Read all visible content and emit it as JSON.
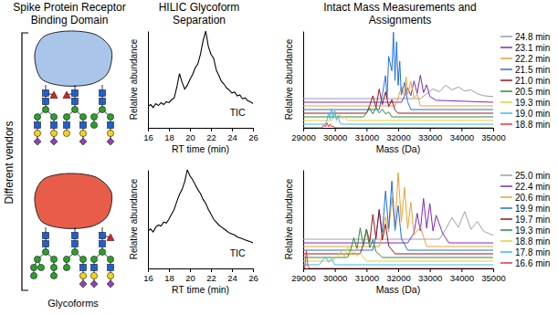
{
  "figure": {
    "column_titles": [
      "Spike Protein Receptor Binding Domain",
      "HILIC Glycoform Separation",
      "Intact Mass Measurements and Assignments"
    ],
    "side_label": "Different vendors",
    "glycan_label": "Glycoforms"
  },
  "chart_data": [
    {
      "type": "line",
      "x_label": "RT time (min)",
      "y_label": "Relative abundance",
      "annotation": "TIC",
      "color": "#000000",
      "x": [
        16,
        16.25,
        16.5,
        16.75,
        17,
        17.25,
        17.5,
        17.75,
        18,
        18.25,
        18.5,
        18.75,
        19,
        19.25,
        19.5,
        19.75,
        20,
        20.25,
        20.5,
        20.75,
        21,
        21.25,
        21.5,
        21.75,
        22,
        22.25,
        22.5,
        22.75,
        23,
        23.25,
        23.5,
        23.75,
        24,
        24.25,
        24.5,
        24.75,
        25,
        25.25,
        25.5,
        25.75,
        26
      ],
      "values": [
        22,
        24,
        21,
        25,
        23,
        26,
        24,
        27,
        26,
        29,
        31,
        42,
        56,
        47,
        40,
        44,
        50,
        55,
        62,
        66,
        76,
        90,
        100,
        84,
        76,
        72,
        60,
        54,
        48,
        45,
        41,
        39,
        36,
        37,
        33,
        34,
        30,
        31,
        28,
        27,
        25
      ],
      "xlim": [
        16,
        26
      ],
      "xticks": [
        16,
        18,
        20,
        22,
        24,
        26
      ],
      "ylim": [
        0,
        100
      ],
      "tick_labels": "x"
    },
    {
      "type": "line",
      "x_label": "RT time (min)",
      "y_label": "Relative abundance",
      "annotation": "TIC",
      "color": "#000000",
      "x": [
        16,
        16.25,
        16.5,
        16.75,
        17,
        17.25,
        17.5,
        17.75,
        18,
        18.25,
        18.5,
        18.75,
        19,
        19.25,
        19.5,
        19.75,
        20,
        20.25,
        20.5,
        20.75,
        21,
        21.25,
        21.5,
        21.75,
        22,
        22.25,
        22.5,
        22.75,
        23,
        23.25,
        23.5,
        23.75,
        24,
        24.25,
        24.5,
        24.75,
        25,
        25.25,
        25.5,
        25.75,
        26
      ],
      "values": [
        38,
        40,
        37,
        42,
        44,
        43,
        47,
        46,
        50,
        55,
        60,
        68,
        75,
        80,
        88,
        100,
        94,
        90,
        85,
        80,
        76,
        70,
        66,
        60,
        55,
        50,
        47,
        44,
        42,
        40,
        38,
        36,
        35,
        34,
        32,
        31,
        30,
        29,
        28,
        27,
        26
      ],
      "xlim": [
        16,
        26
      ],
      "xticks": [
        16,
        18,
        20,
        22,
        24,
        26
      ],
      "ylim": [
        0,
        100
      ],
      "tick_labels": "x"
    },
    {
      "type": "waterfall",
      "x_label": "Mass (Da)",
      "y_label": "Relative abundance",
      "legend": "right",
      "xlim": [
        29000,
        35000
      ],
      "xticks": [
        29000,
        30000,
        31000,
        32000,
        33000,
        34000,
        35000
      ],
      "ylim": [
        0,
        100
      ],
      "tick_labels": "x",
      "series": [
        {
          "name": "24.8 min",
          "color": "#9a9ab0",
          "x": [
            29000,
            32700,
            32900,
            33100,
            33300,
            33500,
            33700,
            33900,
            34100,
            34300,
            34500,
            34700,
            35000
          ],
          "values": [
            0,
            0,
            5,
            10,
            7,
            14,
            9,
            12,
            8,
            9,
            5,
            3,
            2
          ]
        },
        {
          "name": "23.1 min",
          "color": "#7a2bc0",
          "x": [
            29000,
            32100,
            32200,
            32300,
            32400,
            32500,
            32600,
            32700,
            32800,
            32900,
            33000,
            33200,
            35000
          ],
          "values": [
            0,
            0,
            6,
            15,
            7,
            22,
            9,
            28,
            10,
            18,
            6,
            2,
            0
          ]
        },
        {
          "name": "22.2 min",
          "color": "#f0a030",
          "x": [
            29000,
            31900,
            32000,
            32100,
            32200,
            32250,
            32300,
            32400,
            32500,
            32600,
            32700,
            35000
          ],
          "values": [
            0,
            0,
            8,
            20,
            10,
            30,
            12,
            25,
            8,
            12,
            0,
            0
          ]
        },
        {
          "name": "21.5 min",
          "color": "#1f6fe5",
          "x": [
            29000,
            31400,
            31500,
            31600,
            31650,
            31700,
            31800,
            31850,
            31900,
            31950,
            32000,
            32050,
            32100,
            32200,
            32300,
            32400,
            35000
          ],
          "values": [
            0,
            0,
            15,
            35,
            12,
            55,
            40,
            80,
            30,
            70,
            25,
            50,
            15,
            28,
            8,
            0,
            0
          ]
        },
        {
          "name": "21.0 min",
          "color": "#a0151c",
          "x": [
            29000,
            31000,
            31100,
            31200,
            31300,
            31400,
            31500,
            31600,
            31700,
            31800,
            31900,
            32000,
            35000
          ],
          "values": [
            0,
            0,
            8,
            18,
            6,
            25,
            9,
            22,
            7,
            14,
            3,
            0,
            0
          ]
        },
        {
          "name": "20.5 min",
          "color": "#2e8b3a",
          "x": [
            29000,
            30900,
            31000,
            31100,
            31200,
            31300,
            31400,
            31500,
            31600,
            31700,
            31800,
            35000
          ],
          "values": [
            0,
            0,
            4,
            9,
            3,
            10,
            4,
            8,
            3,
            5,
            0,
            0
          ]
        },
        {
          "name": "19.3 min",
          "color": "#e3cf3a",
          "x": [
            29000,
            29900,
            29950,
            30000,
            30100,
            30150,
            30250,
            30300,
            30400,
            35000
          ],
          "values": [
            0,
            0,
            3,
            7,
            2,
            6,
            2,
            4,
            0,
            0
          ]
        },
        {
          "name": "19.0 min",
          "color": "#3cb9e8",
          "x": [
            29000,
            29700,
            29750,
            29800,
            29850,
            29900,
            29950,
            30000,
            30050,
            30100,
            30150,
            30200,
            35000
          ],
          "values": [
            0,
            0,
            4,
            12,
            5,
            16,
            6,
            14,
            4,
            9,
            2,
            0,
            0
          ]
        },
        {
          "name": "18.8 min",
          "color": "#e8333c",
          "x": [
            29000,
            29600,
            29650,
            29700,
            29750,
            29800,
            29850,
            29900,
            29950,
            30000,
            35000
          ],
          "values": [
            0,
            0,
            3,
            1,
            5,
            1,
            4,
            1,
            2,
            0,
            0
          ]
        }
      ]
    },
    {
      "type": "waterfall",
      "x_label": "Mass (Da)",
      "y_label": "Relative abundance",
      "legend": "right",
      "xlim": [
        29000,
        35000
      ],
      "xticks": [
        29000,
        30000,
        31000,
        32000,
        33000,
        34000,
        35000
      ],
      "ylim": [
        0,
        100
      ],
      "tick_labels": "x",
      "series": [
        {
          "name": "25.0 min",
          "color": "#a0a0a8",
          "x": [
            29000,
            33300,
            33500,
            33700,
            33900,
            34100,
            34300,
            34500,
            34700,
            35000
          ],
          "values": [
            0,
            0,
            10,
            22,
            12,
            28,
            10,
            18,
            8,
            4
          ]
        },
        {
          "name": "22.4 min",
          "color": "#7a2bc0",
          "x": [
            29000,
            32300,
            32500,
            32600,
            32700,
            32800,
            32900,
            33000,
            33100,
            33200,
            33400,
            33600,
            35000
          ],
          "values": [
            0,
            0,
            10,
            30,
            12,
            45,
            15,
            40,
            12,
            28,
            10,
            0,
            0
          ]
        },
        {
          "name": "20.6 min",
          "color": "#f0a030",
          "x": [
            29000,
            31400,
            31500,
            31600,
            31700,
            31800,
            31900,
            32000,
            32100,
            32200,
            32300,
            32400,
            32500,
            32700,
            32900,
            35000
          ],
          "values": [
            0,
            0,
            12,
            30,
            15,
            50,
            20,
            75,
            25,
            60,
            18,
            45,
            12,
            20,
            0,
            0
          ]
        },
        {
          "name": "19.9 min",
          "color": "#1f6fe5",
          "x": [
            29000,
            31200,
            31300,
            31400,
            31500,
            31600,
            31700,
            31800,
            31900,
            32000,
            32100,
            32300,
            35000
          ],
          "values": [
            0,
            0,
            15,
            40,
            18,
            60,
            22,
            70,
            20,
            45,
            12,
            0,
            0
          ]
        },
        {
          "name": "19.7 min",
          "color": "#a0151c",
          "x": [
            29000,
            30800,
            30900,
            31000,
            31100,
            31200,
            31300,
            31400,
            31500,
            31600,
            31700,
            31900,
            35000
          ],
          "values": [
            0,
            0,
            10,
            25,
            12,
            40,
            15,
            45,
            14,
            30,
            8,
            0,
            0
          ]
        },
        {
          "name": "19.3 min",
          "color": "#2e8b3a",
          "x": [
            29000,
            30400,
            30500,
            30600,
            30700,
            30800,
            30900,
            31000,
            31100,
            31200,
            31300,
            31500,
            35000
          ],
          "values": [
            0,
            0,
            8,
            20,
            9,
            30,
            12,
            28,
            10,
            18,
            6,
            0,
            0
          ]
        },
        {
          "name": "18.8 min",
          "color": "#e3cf3a",
          "x": [
            29000,
            29900,
            30100,
            30200,
            30300,
            30400,
            30500,
            30600,
            30700,
            30800,
            31000,
            35000
          ],
          "values": [
            0,
            0,
            5,
            10,
            4,
            14,
            6,
            12,
            5,
            8,
            0,
            0
          ]
        },
        {
          "name": "17.8 min",
          "color": "#3cb9e8",
          "x": [
            29000,
            29500,
            29600,
            29700,
            29800,
            29900,
            30000,
            35000
          ],
          "values": [
            0,
            0,
            4,
            8,
            3,
            6,
            0,
            0
          ]
        },
        {
          "name": "16.6 min",
          "color": "#e8333c",
          "x": [
            29000,
            29050,
            29100,
            29150,
            29200,
            35000
          ],
          "values": [
            0,
            0,
            18,
            2,
            0,
            0
          ]
        }
      ]
    }
  ]
}
